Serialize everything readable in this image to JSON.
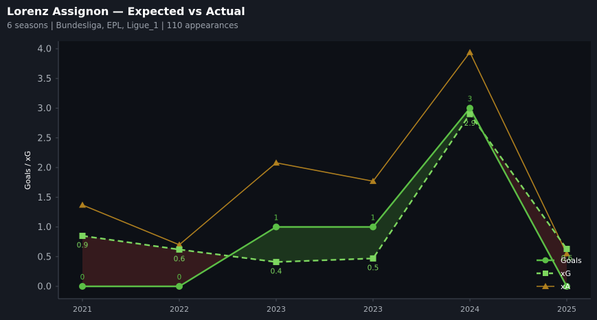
{
  "header": {
    "title": "Lorenz Assignon — Expected vs Actual",
    "subtitle": "6 seasons | Bundesliga, EPL, Ligue_1 | 110 appearances"
  },
  "colors": {
    "goals": "#5cbf46",
    "xg": "#7dd65f",
    "xa": "#b0801f",
    "over_fill": "#1e3a1e",
    "under_fill": "#3a1c1e",
    "plot_bg": "#0d1016",
    "axis": "#444a55"
  },
  "chart_data": {
    "type": "line",
    "categories": [
      "2021",
      "2022",
      "2023",
      "2023",
      "2024",
      "2025"
    ],
    "ylabel": "Goals / xG",
    "ylim": [
      -0.15,
      4.1
    ],
    "yticks": [
      "0.0",
      "0.5",
      "1.0",
      "1.5",
      "2.0",
      "2.5",
      "3.0",
      "3.5",
      "4.0"
    ],
    "grid": false,
    "legend": "bottom-right",
    "series": [
      {
        "name": "Goals",
        "values": [
          0,
          0,
          1,
          1,
          3,
          0
        ],
        "labels": [
          "0",
          "0",
          "1",
          "1",
          "3",
          ""
        ],
        "marker": "circle",
        "style": "solid"
      },
      {
        "name": "xG",
        "values": [
          0.85,
          0.62,
          0.41,
          0.47,
          2.9,
          0.63
        ],
        "labels": [
          "0.9",
          "0.6",
          "0.4",
          "0.5",
          "2.9",
          "0.6"
        ],
        "marker": "square",
        "style": "dashed"
      },
      {
        "name": "xA",
        "values": [
          1.37,
          0.7,
          2.08,
          1.77,
          3.94,
          0.55
        ],
        "marker": "triangle",
        "style": "solid"
      }
    ]
  }
}
